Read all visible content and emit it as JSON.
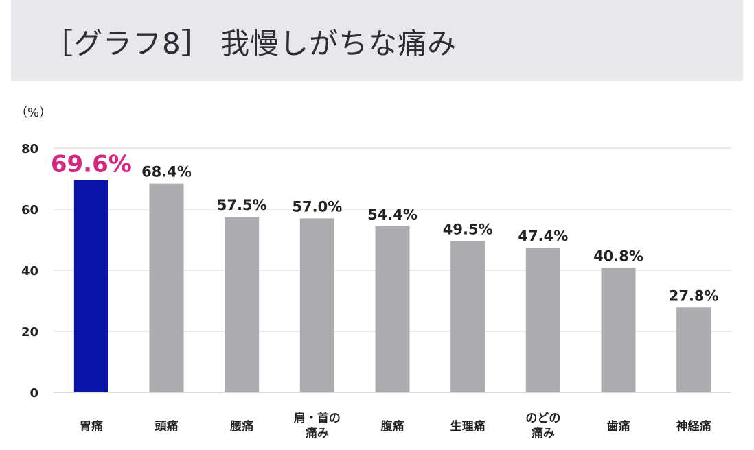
{
  "title": "［グラフ8］ 我慢しがちな痛み",
  "unit_label": "（%）",
  "chart_data": {
    "type": "bar",
    "title": "［グラフ8］ 我慢しがちな痛み",
    "ylabel": "（%）",
    "ylim": [
      0,
      80
    ],
    "yticks": [
      "0",
      "20",
      "40",
      "60",
      "80"
    ],
    "grid": true,
    "categories": [
      [
        "胃痛"
      ],
      [
        "頭痛"
      ],
      [
        "腰痛"
      ],
      [
        "肩・首の",
        "痛み"
      ],
      [
        "腹痛"
      ],
      [
        "生理痛"
      ],
      [
        "のどの",
        "痛み"
      ],
      [
        "歯痛"
      ],
      [
        "神経痛"
      ]
    ],
    "values": [
      69.6,
      68.4,
      57.5,
      57.0,
      54.4,
      49.5,
      47.4,
      40.8,
      27.8
    ],
    "value_labels": [
      "69.6%",
      "68.4%",
      "57.5%",
      "57.0%",
      "54.4%",
      "49.5%",
      "47.4%",
      "40.8%",
      "27.8%"
    ],
    "highlight_index": 0,
    "colors": {
      "highlight_bar": "#0a14a8",
      "bar": "#acabb0",
      "highlight_label": "#d6267f",
      "grid": "#d4d4d4",
      "axis": "#cfcfcf"
    }
  }
}
